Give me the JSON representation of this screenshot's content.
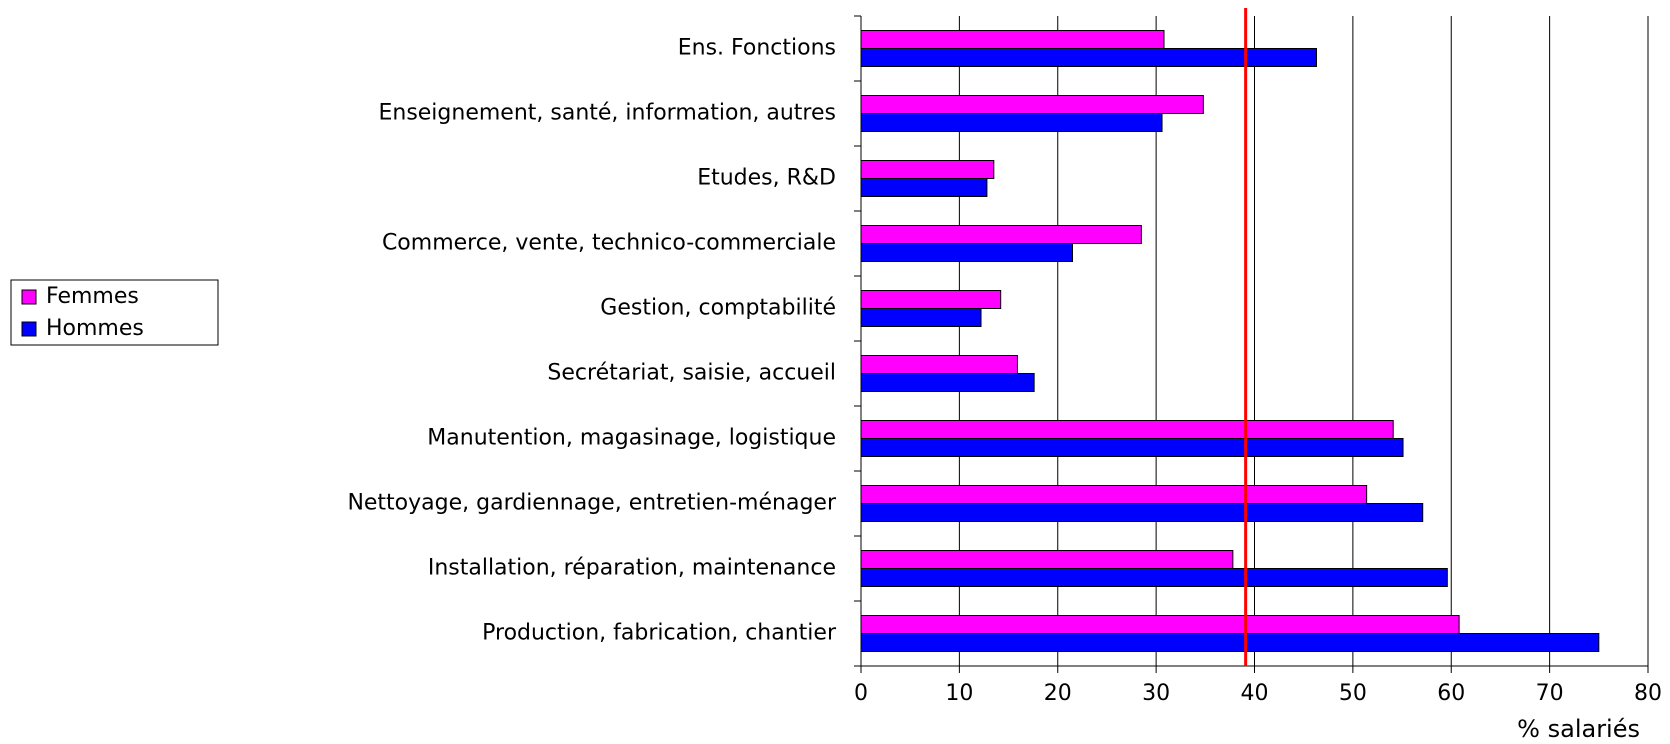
{
  "chart_data": {
    "type": "hbar",
    "categories": [
      "Ens. Fonctions",
      "Enseignement, santé, information, autres",
      "Etudes, R&D",
      "Commerce, vente, technico-commerciale",
      "Gestion, comptabilité",
      "Secrétariat, saisie, accueil",
      "Manutention, magasinage, logistique",
      "Nettoyage, gardiennage, entretien-ménager",
      "Installation, réparation, maintenance",
      "Production, fabrication, chantier"
    ],
    "series": [
      {
        "name": "Femmes",
        "color": "#ff00ff",
        "values": [
          30.8,
          34.8,
          13.5,
          28.5,
          14.2,
          15.9,
          54.1,
          51.4,
          37.8,
          60.8
        ]
      },
      {
        "name": "Hommes",
        "color": "#0000ff",
        "values": [
          46.3,
          30.6,
          12.8,
          21.5,
          12.2,
          17.6,
          55.1,
          57.1,
          59.6,
          75.0
        ]
      }
    ],
    "reference_value": 39.1,
    "reference_color": "#ff0000",
    "x_label": "% salariés",
    "xlim": [
      0,
      80
    ],
    "xticks": [
      0,
      10,
      20,
      30,
      40,
      50,
      60,
      70,
      80
    ],
    "grid": true,
    "legend": "left"
  }
}
